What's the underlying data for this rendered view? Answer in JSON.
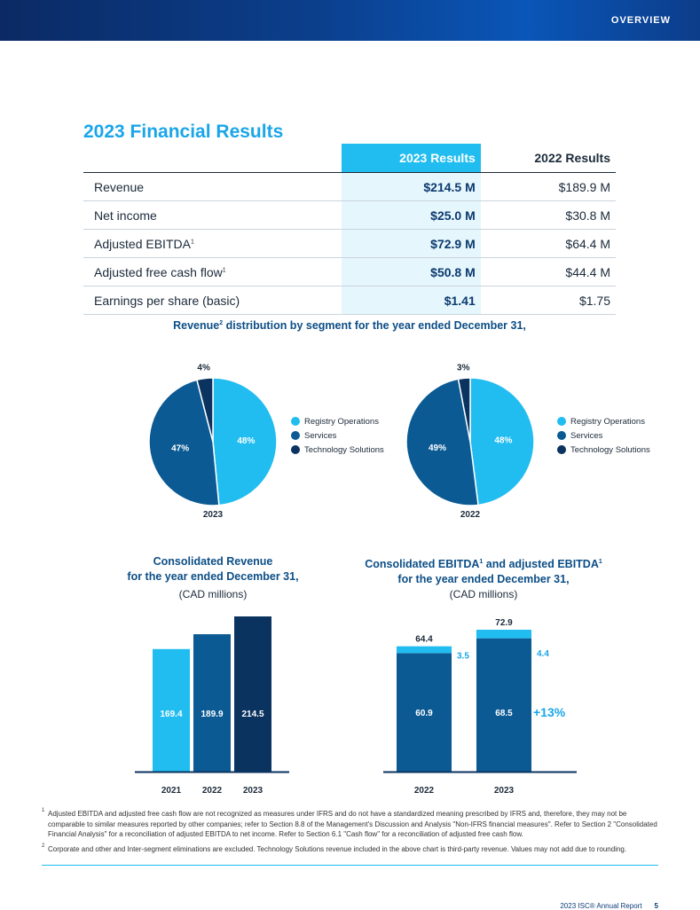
{
  "header": {
    "section_label": "OVERVIEW"
  },
  "title": "2023 Financial Results",
  "results_table": {
    "col_current": "2023 Results",
    "col_prior": "2022 Results",
    "rows": [
      {
        "label": "Revenue",
        "sup": "",
        "current": "$214.5 M",
        "prior": "$189.9 M"
      },
      {
        "label": "Net income",
        "sup": "",
        "current": "$25.0 M",
        "prior": "$30.8 M"
      },
      {
        "label": "Adjusted EBITDA",
        "sup": "1",
        "current": "$72.9 M",
        "prior": "$64.4 M"
      },
      {
        "label": "Adjusted free cash flow",
        "sup": "1",
        "current": "$50.8 M",
        "prior": "$44.4 M"
      },
      {
        "label": "Earnings per share (basic)",
        "sup": "",
        "current": "$1.41",
        "prior": "$1.75"
      }
    ]
  },
  "pie_section": {
    "heading_pre": "Revenue",
    "heading_sup": "2",
    "heading_post": " distribution by segment for the year ended December 31,"
  },
  "legend": {
    "items": [
      "Registry Operations",
      "Services",
      "Technology Solutions"
    ]
  },
  "revenue_section": {
    "title_line1": "Consolidated Revenue",
    "title_line2": "for the year ended December 31,",
    "unit": "(CAD millions)"
  },
  "ebitda_section": {
    "title_line1_a": "Consolidated EBITDA",
    "title_line1_sup_a": "1",
    "title_line1_b": " and adjusted EBITDA",
    "title_line1_sup_b": "1",
    "title_line2": "for the year ended December 31,",
    "unit": "(CAD millions)",
    "growth_label": "+13%"
  },
  "footnotes": {
    "note1_mark": "1",
    "note1": "Adjusted EBITDA and adjusted free cash flow are not recognized as measures under IFRS and do not have a standardized meaning prescribed by IFRS and, therefore, they may not be comparable to similar measures reported by other companies; refer to Section 8.8 of the Management's Discussion and Analysis \"Non-IFRS financial measures\". Refer to Section 2 \"Consolidated Financial Analysis\" for a reconciliation of adjusted EBITDA to net income. Refer to Section 6.1 \"Cash flow\" for a reconciliation of adjusted free cash flow.",
    "note2_mark": "2",
    "note2": "Corporate and other and Inter-segment eliminations are excluded. Technology Solutions revenue included in the above chart is third-party revenue. Values may not add due to rounding."
  },
  "footer": {
    "report": "2023 ISC® Annual Report",
    "page": "5"
  },
  "colors": {
    "light": "#21bdf0",
    "mid": "#0b5a94",
    "dark": "#0b3360",
    "accent": "#1aa6e8"
  },
  "chart_data": [
    {
      "type": "pie",
      "title": "2023",
      "labels": [
        "Registry Operations",
        "Services",
        "Technology Solutions"
      ],
      "values": [
        48,
        47,
        4
      ],
      "value_labels": [
        "48%",
        "47%",
        "4%"
      ]
    },
    {
      "type": "pie",
      "title": "2022",
      "labels": [
        "Registry Operations",
        "Services",
        "Technology Solutions"
      ],
      "values": [
        48,
        49,
        3
      ],
      "value_labels": [
        "48%",
        "49%",
        "3%"
      ]
    },
    {
      "type": "bar",
      "title": "Consolidated Revenue for the year ended December 31,",
      "ylabel": "(CAD millions)",
      "categories": [
        "2021",
        "2022",
        "2023"
      ],
      "values": [
        169.4,
        189.9,
        214.5
      ],
      "value_labels": [
        "169.4",
        "189.9",
        "214.5"
      ],
      "ylim": [
        0,
        214.5
      ]
    },
    {
      "type": "bar",
      "title": "Consolidated EBITDA and adjusted EBITDA for the year ended December 31,",
      "ylabel": "(CAD millions)",
      "categories": [
        "2022",
        "2023"
      ],
      "series": [
        {
          "name": "Consolidated EBITDA",
          "values": [
            60.9,
            68.5
          ],
          "labels": [
            "60.9",
            "68.5"
          ]
        },
        {
          "name": "Adjustments",
          "values": [
            3.5,
            4.4
          ],
          "labels": [
            "3.5",
            "4.4"
          ]
        }
      ],
      "totals": [
        64.4,
        72.9
      ],
      "total_labels": [
        "64.4",
        "72.9"
      ],
      "ylim": [
        0,
        72.9
      ]
    }
  ]
}
